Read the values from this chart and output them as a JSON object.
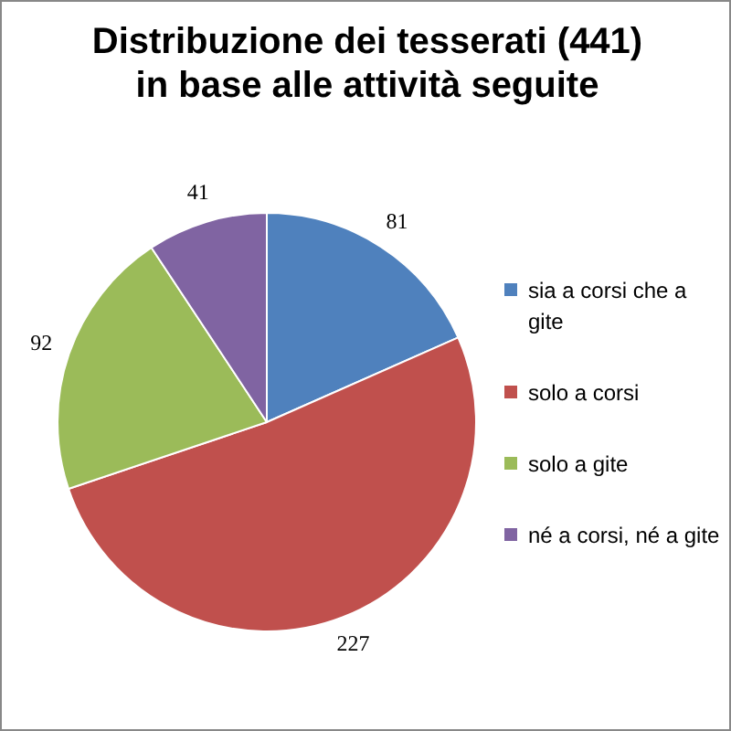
{
  "chart_data": {
    "type": "pie",
    "title": "Distribuzione dei tesserati (441) in base alle attività seguite",
    "categories": [
      "sia a corsi che a gite",
      "solo a corsi",
      "solo a gite",
      "né a corsi, né a gite"
    ],
    "values": [
      81,
      227,
      92,
      41
    ],
    "colors": [
      "#4f81bd",
      "#c0504d",
      "#9bbb59",
      "#8064a2"
    ],
    "data_labels": true,
    "legend": "right"
  }
}
